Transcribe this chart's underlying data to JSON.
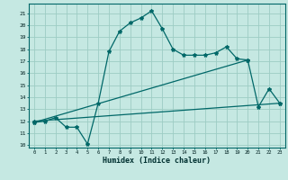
{
  "xlabel": "Humidex (Indice chaleur)",
  "xlim": [
    -0.5,
    23.5
  ],
  "ylim": [
    9.8,
    21.8
  ],
  "xticks": [
    0,
    1,
    2,
    3,
    4,
    5,
    6,
    7,
    8,
    9,
    10,
    11,
    12,
    13,
    14,
    15,
    16,
    17,
    18,
    19,
    20,
    21,
    22,
    23
  ],
  "yticks": [
    10,
    11,
    12,
    13,
    14,
    15,
    16,
    17,
    18,
    19,
    20,
    21
  ],
  "bg_color": "#c5e8e2",
  "grid_color": "#9dccc4",
  "line_color": "#006868",
  "line1_x": [
    0,
    1,
    2,
    3,
    4,
    5,
    6,
    7,
    8,
    9,
    10,
    11,
    12,
    13,
    14,
    15,
    16,
    17,
    18,
    19,
    20,
    21,
    22,
    23
  ],
  "line1_y": [
    11.9,
    12.0,
    12.3,
    11.5,
    11.5,
    10.1,
    13.5,
    17.8,
    19.5,
    20.2,
    20.6,
    21.2,
    19.7,
    18.0,
    17.5,
    17.5,
    17.5,
    17.7,
    18.2,
    17.2,
    17.1,
    13.2,
    14.7,
    13.5
  ],
  "line2_x": [
    0,
    20
  ],
  "line2_y": [
    11.9,
    17.1
  ],
  "line3_x": [
    0,
    23
  ],
  "line3_y": [
    12.0,
    13.5
  ],
  "markersize": 3,
  "linewidth": 0.9
}
